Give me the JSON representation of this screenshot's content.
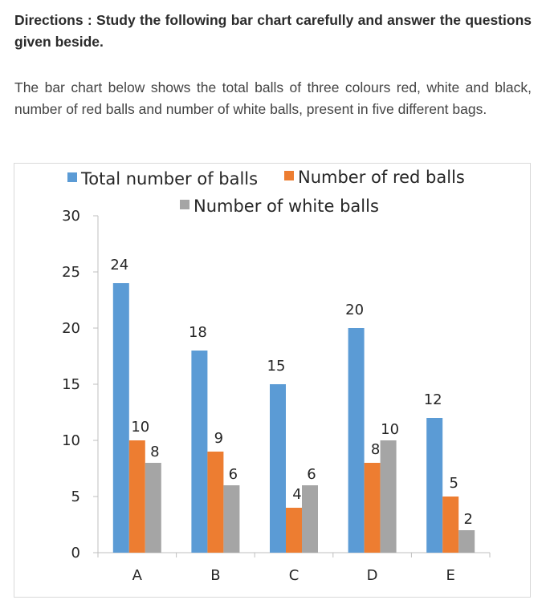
{
  "directions": "Directions : Study the following bar chart carefully and answer the questions given beside.",
  "intro": "The bar chart below shows the total balls of three colours red, white and black, number of red balls and number of white balls, present in five different bags.",
  "chart_data": {
    "type": "bar",
    "categories": [
      "A",
      "B",
      "C",
      "D",
      "E"
    ],
    "series": [
      {
        "name": "Total number of balls",
        "color": "#5b9bd5",
        "values": [
          24,
          18,
          15,
          20,
          12
        ]
      },
      {
        "name": "Number of red balls",
        "color": "#ed7d31",
        "values": [
          10,
          9,
          4,
          8,
          5
        ]
      },
      {
        "name": "Number of white balls",
        "color": "#a5a5a5",
        "values": [
          8,
          6,
          6,
          10,
          2
        ]
      }
    ],
    "ylim": [
      0,
      30
    ],
    "yticks": [
      0,
      5,
      10,
      15,
      20,
      25,
      30
    ],
    "legend": "top",
    "grid": false,
    "data_labels": true
  }
}
